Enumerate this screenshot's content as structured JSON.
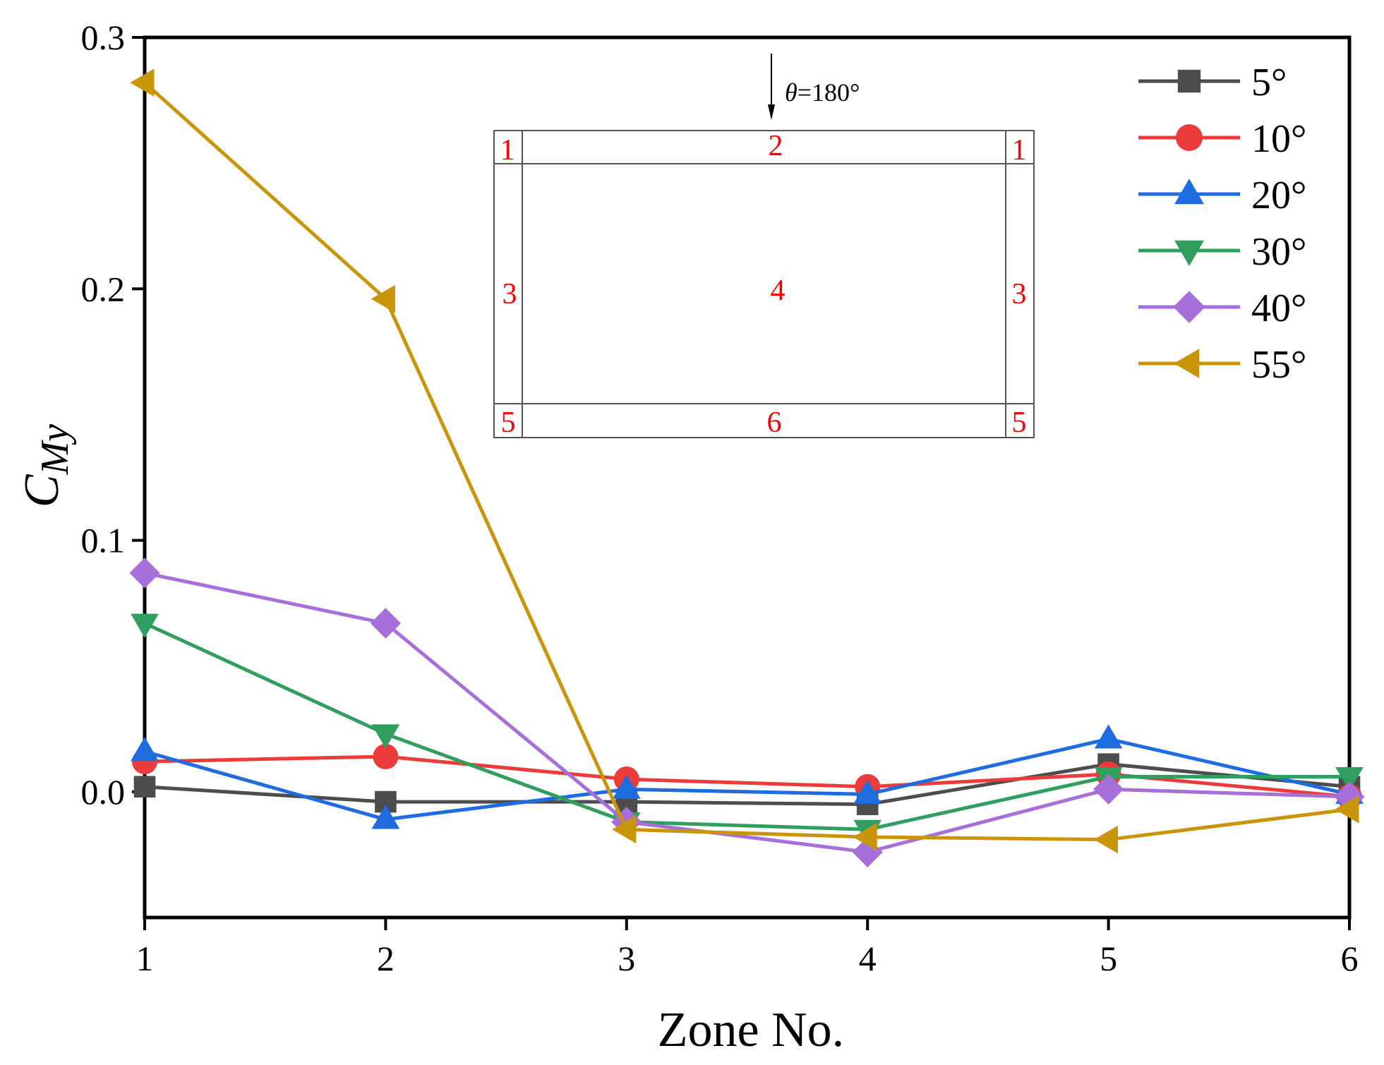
{
  "chart_data": {
    "type": "line",
    "title": "",
    "xlabel": "Zone No.",
    "ylabel_main": "C",
    "ylabel_sub": "My",
    "xlim": [
      1,
      6
    ],
    "ylim": [
      -0.05,
      0.3
    ],
    "x": [
      1,
      2,
      3,
      4,
      5,
      6
    ],
    "x_ticks": [
      "1",
      "2",
      "3",
      "4",
      "5",
      "6"
    ],
    "y_ticks": [
      {
        "value": 0.0,
        "label": "0.0"
      },
      {
        "value": 0.1,
        "label": "0.1"
      },
      {
        "value": 0.2,
        "label": "0.2"
      },
      {
        "value": 0.3,
        "label": "0.3"
      }
    ],
    "grid": false,
    "legend_position": "top-right",
    "series": [
      {
        "name": "5°",
        "color": "#4d4d4d",
        "marker": "square",
        "values": [
          0.002,
          -0.004,
          -0.004,
          -0.005,
          0.011,
          0.002
        ]
      },
      {
        "name": "10°",
        "color": "#ec3b3b",
        "marker": "circle",
        "values": [
          0.012,
          0.014,
          0.005,
          0.002,
          0.007,
          -0.002
        ]
      },
      {
        "name": "20°",
        "color": "#1f6be0",
        "marker": "triangle-up",
        "values": [
          0.016,
          -0.011,
          0.001,
          -0.001,
          0.021,
          -0.001
        ]
      },
      {
        "name": "30°",
        "color": "#2f9e5f",
        "marker": "triangle-down",
        "values": [
          0.067,
          0.023,
          -0.012,
          -0.015,
          0.006,
          0.006
        ]
      },
      {
        "name": "40°",
        "color": "#a66fd9",
        "marker": "diamond",
        "values": [
          0.087,
          0.067,
          -0.012,
          -0.024,
          0.001,
          -0.002
        ]
      },
      {
        "name": "55°",
        "color": "#c9960b",
        "marker": "triangle-left",
        "values": [
          0.282,
          0.196,
          -0.015,
          -0.018,
          -0.019,
          -0.007
        ]
      }
    ],
    "inset": {
      "wind_symbol": "θ",
      "wind_value": "=180°",
      "zones": {
        "top_left": "1",
        "top_mid": "2",
        "top_right": "1",
        "mid_left": "3",
        "mid_mid": "4",
        "mid_right": "3",
        "bot_left": "5",
        "bot_mid": "6",
        "bot_right": "5"
      }
    }
  }
}
